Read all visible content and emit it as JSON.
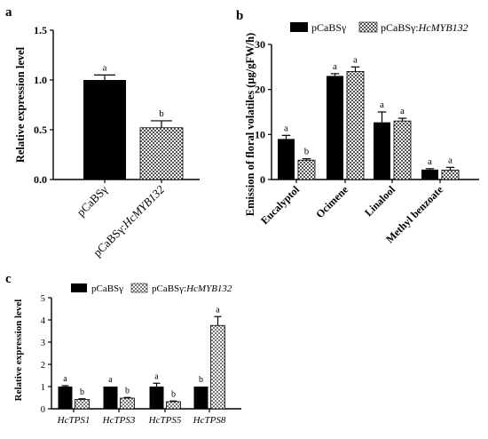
{
  "colors": {
    "control": "#000000",
    "overexpression_pattern": "checkered gray/white",
    "checker_dark": "#555555",
    "checker_light": "#ffffff"
  },
  "chart_data": [
    {
      "panel": "a",
      "type": "bar",
      "ylabel": "Relative expression level",
      "categories": [
        "pCaBSγ",
        "pCaBSγ:HcMYB132"
      ],
      "values": [
        1.0,
        0.52
      ],
      "errors": [
        0.05,
        0.07
      ],
      "significance": [
        "a",
        "b"
      ],
      "ylim": [
        0,
        1.5
      ],
      "yticks": [
        "0.0",
        "0.5",
        "1.0",
        "1.5"
      ],
      "grid": false
    },
    {
      "panel": "b",
      "type": "bar",
      "ylabel": "Emission of floral volatiles (μg/gFW/h)",
      "categories": [
        "Eucalyptol",
        "Ocimene",
        "Linalool",
        "Methyl benzoate"
      ],
      "series": [
        {
          "name": "pCaBSγ",
          "values": [
            9.0,
            23.0,
            12.7,
            2.2
          ],
          "errors": [
            0.8,
            0.5,
            2.3,
            0.2
          ],
          "significance": [
            "a",
            "a",
            "a",
            "a"
          ]
        },
        {
          "name": "pCaBSγ:HcMYB132",
          "values": [
            4.3,
            24.0,
            13.0,
            2.1
          ],
          "errors": [
            0.3,
            1.0,
            0.6,
            0.6
          ],
          "significance": [
            "b",
            "a",
            "a",
            "a"
          ]
        }
      ],
      "ylim": [
        0,
        30
      ],
      "yticks": [
        "0",
        "10",
        "20",
        "30"
      ],
      "legend": "top",
      "grid": false
    },
    {
      "panel": "c",
      "type": "bar",
      "ylabel": "Relative expression level",
      "categories": [
        "HcTPS1",
        "HcTPS3",
        "HcTPS5",
        "HcTPS8"
      ],
      "series": [
        {
          "name": "pCaBSγ",
          "values": [
            1.0,
            1.0,
            1.0,
            1.0
          ],
          "errors": [
            0.04,
            0.0,
            0.15,
            0.0
          ],
          "significance": [
            "a",
            "a",
            "a",
            "b"
          ]
        },
        {
          "name": "pCaBSγ:HcMYB132",
          "values": [
            0.42,
            0.48,
            0.32,
            3.75
          ],
          "errors": [
            0.03,
            0.03,
            0.03,
            0.4
          ],
          "significance": [
            "b",
            "b",
            "b",
            "a"
          ]
        }
      ],
      "ylim": [
        0,
        5
      ],
      "yticks": [
        "0",
        "1",
        "2",
        "3",
        "4",
        "5"
      ],
      "legend": "top",
      "grid": false
    }
  ],
  "legend_labels": {
    "control": "pCaBSγ",
    "over_prefix": "pCaBSγ:",
    "over_gene": "HcMYB132"
  },
  "panel_letters": [
    "a",
    "b",
    "c"
  ]
}
